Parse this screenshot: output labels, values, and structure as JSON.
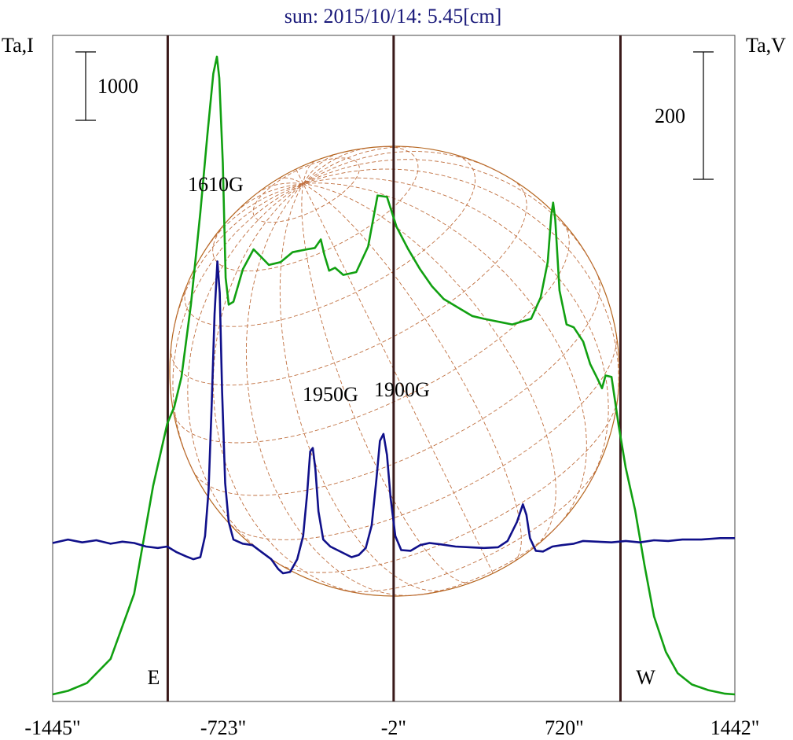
{
  "chart_data": {
    "type": "line",
    "title": "sun: 2015/10/14: 5.45[cm]",
    "left_axis_label": "Ta,I",
    "right_axis_label": "Ta,V",
    "left_scale_label": "1000",
    "right_scale_label": "200",
    "x_ticks": [
      {
        "value": -1445,
        "label": "-1445\""
      },
      {
        "value": -723,
        "label": "-723\""
      },
      {
        "value": -2,
        "label": "-2\""
      },
      {
        "value": 720,
        "label": "720\""
      },
      {
        "value": 1442,
        "label": "1442\""
      }
    ],
    "xlim": [
      -1445,
      1442
    ],
    "limb_markers": [
      {
        "value": -958,
        "label": "E"
      },
      {
        "value": 958,
        "label": "W"
      }
    ],
    "center_marker": -2,
    "series": [
      {
        "name": "I",
        "color": "#11a011",
        "axis": "left",
        "ylim": [
          0,
          4700
        ],
        "points": [
          [
            -1445,
            50
          ],
          [
            -1380,
            75
          ],
          [
            -1300,
            130
          ],
          [
            -1200,
            300
          ],
          [
            -1100,
            760
          ],
          [
            -1020,
            1520
          ],
          [
            -960,
            1960
          ],
          [
            -930,
            2080
          ],
          [
            -900,
            2290
          ],
          [
            -860,
            2800
          ],
          [
            -820,
            3450
          ],
          [
            -790,
            4000
          ],
          [
            -765,
            4430
          ],
          [
            -750,
            4550
          ],
          [
            -740,
            4400
          ],
          [
            -725,
            3800
          ],
          [
            -713,
            2990
          ],
          [
            -700,
            2800
          ],
          [
            -680,
            2820
          ],
          [
            -640,
            3050
          ],
          [
            -595,
            3190
          ],
          [
            -565,
            3140
          ],
          [
            -530,
            3080
          ],
          [
            -480,
            3100
          ],
          [
            -430,
            3170
          ],
          [
            -370,
            3190
          ],
          [
            -335,
            3200
          ],
          [
            -310,
            3260
          ],
          [
            -295,
            3150
          ],
          [
            -275,
            3040
          ],
          [
            -250,
            3060
          ],
          [
            -215,
            3010
          ],
          [
            -160,
            3030
          ],
          [
            -110,
            3210
          ],
          [
            -70,
            3570
          ],
          [
            -30,
            3560
          ],
          [
            10,
            3350
          ],
          [
            60,
            3190
          ],
          [
            110,
            3050
          ],
          [
            160,
            2930
          ],
          [
            210,
            2840
          ],
          [
            270,
            2780
          ],
          [
            330,
            2720
          ],
          [
            380,
            2700
          ],
          [
            440,
            2680
          ],
          [
            500,
            2660
          ],
          [
            580,
            2700
          ],
          [
            620,
            2850
          ],
          [
            650,
            3100
          ],
          [
            665,
            3430
          ],
          [
            673,
            3520
          ],
          [
            682,
            3400
          ],
          [
            700,
            2900
          ],
          [
            730,
            2660
          ],
          [
            760,
            2640
          ],
          [
            800,
            2540
          ],
          [
            830,
            2380
          ],
          [
            860,
            2280
          ],
          [
            880,
            2210
          ],
          [
            895,
            2300
          ],
          [
            920,
            2290
          ],
          [
            950,
            1950
          ],
          [
            980,
            1650
          ],
          [
            1020,
            1350
          ],
          [
            1060,
            960
          ],
          [
            1100,
            600
          ],
          [
            1150,
            350
          ],
          [
            1200,
            200
          ],
          [
            1260,
            120
          ],
          [
            1330,
            80
          ],
          [
            1400,
            55
          ],
          [
            1442,
            50
          ]
        ]
      },
      {
        "name": "V",
        "color": "#10108a",
        "axis": "right",
        "ylim": [
          -220,
          726
        ],
        "points": [
          [
            -1445,
            5
          ],
          [
            -1380,
            10
          ],
          [
            -1320,
            6
          ],
          [
            -1260,
            9
          ],
          [
            -1200,
            4
          ],
          [
            -1150,
            7
          ],
          [
            -1100,
            5
          ],
          [
            -1050,
            0
          ],
          [
            -1000,
            -2
          ],
          [
            -960,
            0
          ],
          [
            -920,
            -8
          ],
          [
            -880,
            -14
          ],
          [
            -850,
            -18
          ],
          [
            -820,
            -15
          ],
          [
            -800,
            15
          ],
          [
            -785,
            80
          ],
          [
            -772,
            200
          ],
          [
            -760,
            330
          ],
          [
            -748,
            405
          ],
          [
            -738,
            360
          ],
          [
            -728,
            220
          ],
          [
            -715,
            90
          ],
          [
            -700,
            35
          ],
          [
            -680,
            10
          ],
          [
            -640,
            4
          ],
          [
            -600,
            2
          ],
          [
            -560,
            -8
          ],
          [
            -520,
            -18
          ],
          [
            -490,
            -32
          ],
          [
            -470,
            -38
          ],
          [
            -440,
            -36
          ],
          [
            -410,
            -18
          ],
          [
            -385,
            15
          ],
          [
            -368,
            75
          ],
          [
            -355,
            135
          ],
          [
            -344,
            140
          ],
          [
            -333,
            110
          ],
          [
            -320,
            50
          ],
          [
            -300,
            10
          ],
          [
            -270,
            0
          ],
          [
            -240,
            -5
          ],
          [
            -210,
            -10
          ],
          [
            -180,
            -15
          ],
          [
            -150,
            -12
          ],
          [
            -120,
            -2
          ],
          [
            -95,
            30
          ],
          [
            -75,
            95
          ],
          [
            -60,
            150
          ],
          [
            -45,
            160
          ],
          [
            -30,
            130
          ],
          [
            -15,
            70
          ],
          [
            5,
            15
          ],
          [
            30,
            -5
          ],
          [
            70,
            -6
          ],
          [
            110,
            2
          ],
          [
            150,
            5
          ],
          [
            200,
            3
          ],
          [
            260,
            0
          ],
          [
            320,
            -1
          ],
          [
            380,
            -2
          ],
          [
            440,
            -1
          ],
          [
            480,
            8
          ],
          [
            520,
            35
          ],
          [
            545,
            60
          ],
          [
            560,
            45
          ],
          [
            575,
            12
          ],
          [
            600,
            -6
          ],
          [
            630,
            -7
          ],
          [
            670,
            0
          ],
          [
            710,
            2
          ],
          [
            760,
            4
          ],
          [
            800,
            8
          ],
          [
            860,
            7
          ],
          [
            920,
            6
          ],
          [
            980,
            8
          ],
          [
            1040,
            6
          ],
          [
            1100,
            9
          ],
          [
            1160,
            8
          ],
          [
            1220,
            10
          ],
          [
            1300,
            10
          ],
          [
            1380,
            12
          ],
          [
            1442,
            12
          ]
        ]
      }
    ]
  }
}
